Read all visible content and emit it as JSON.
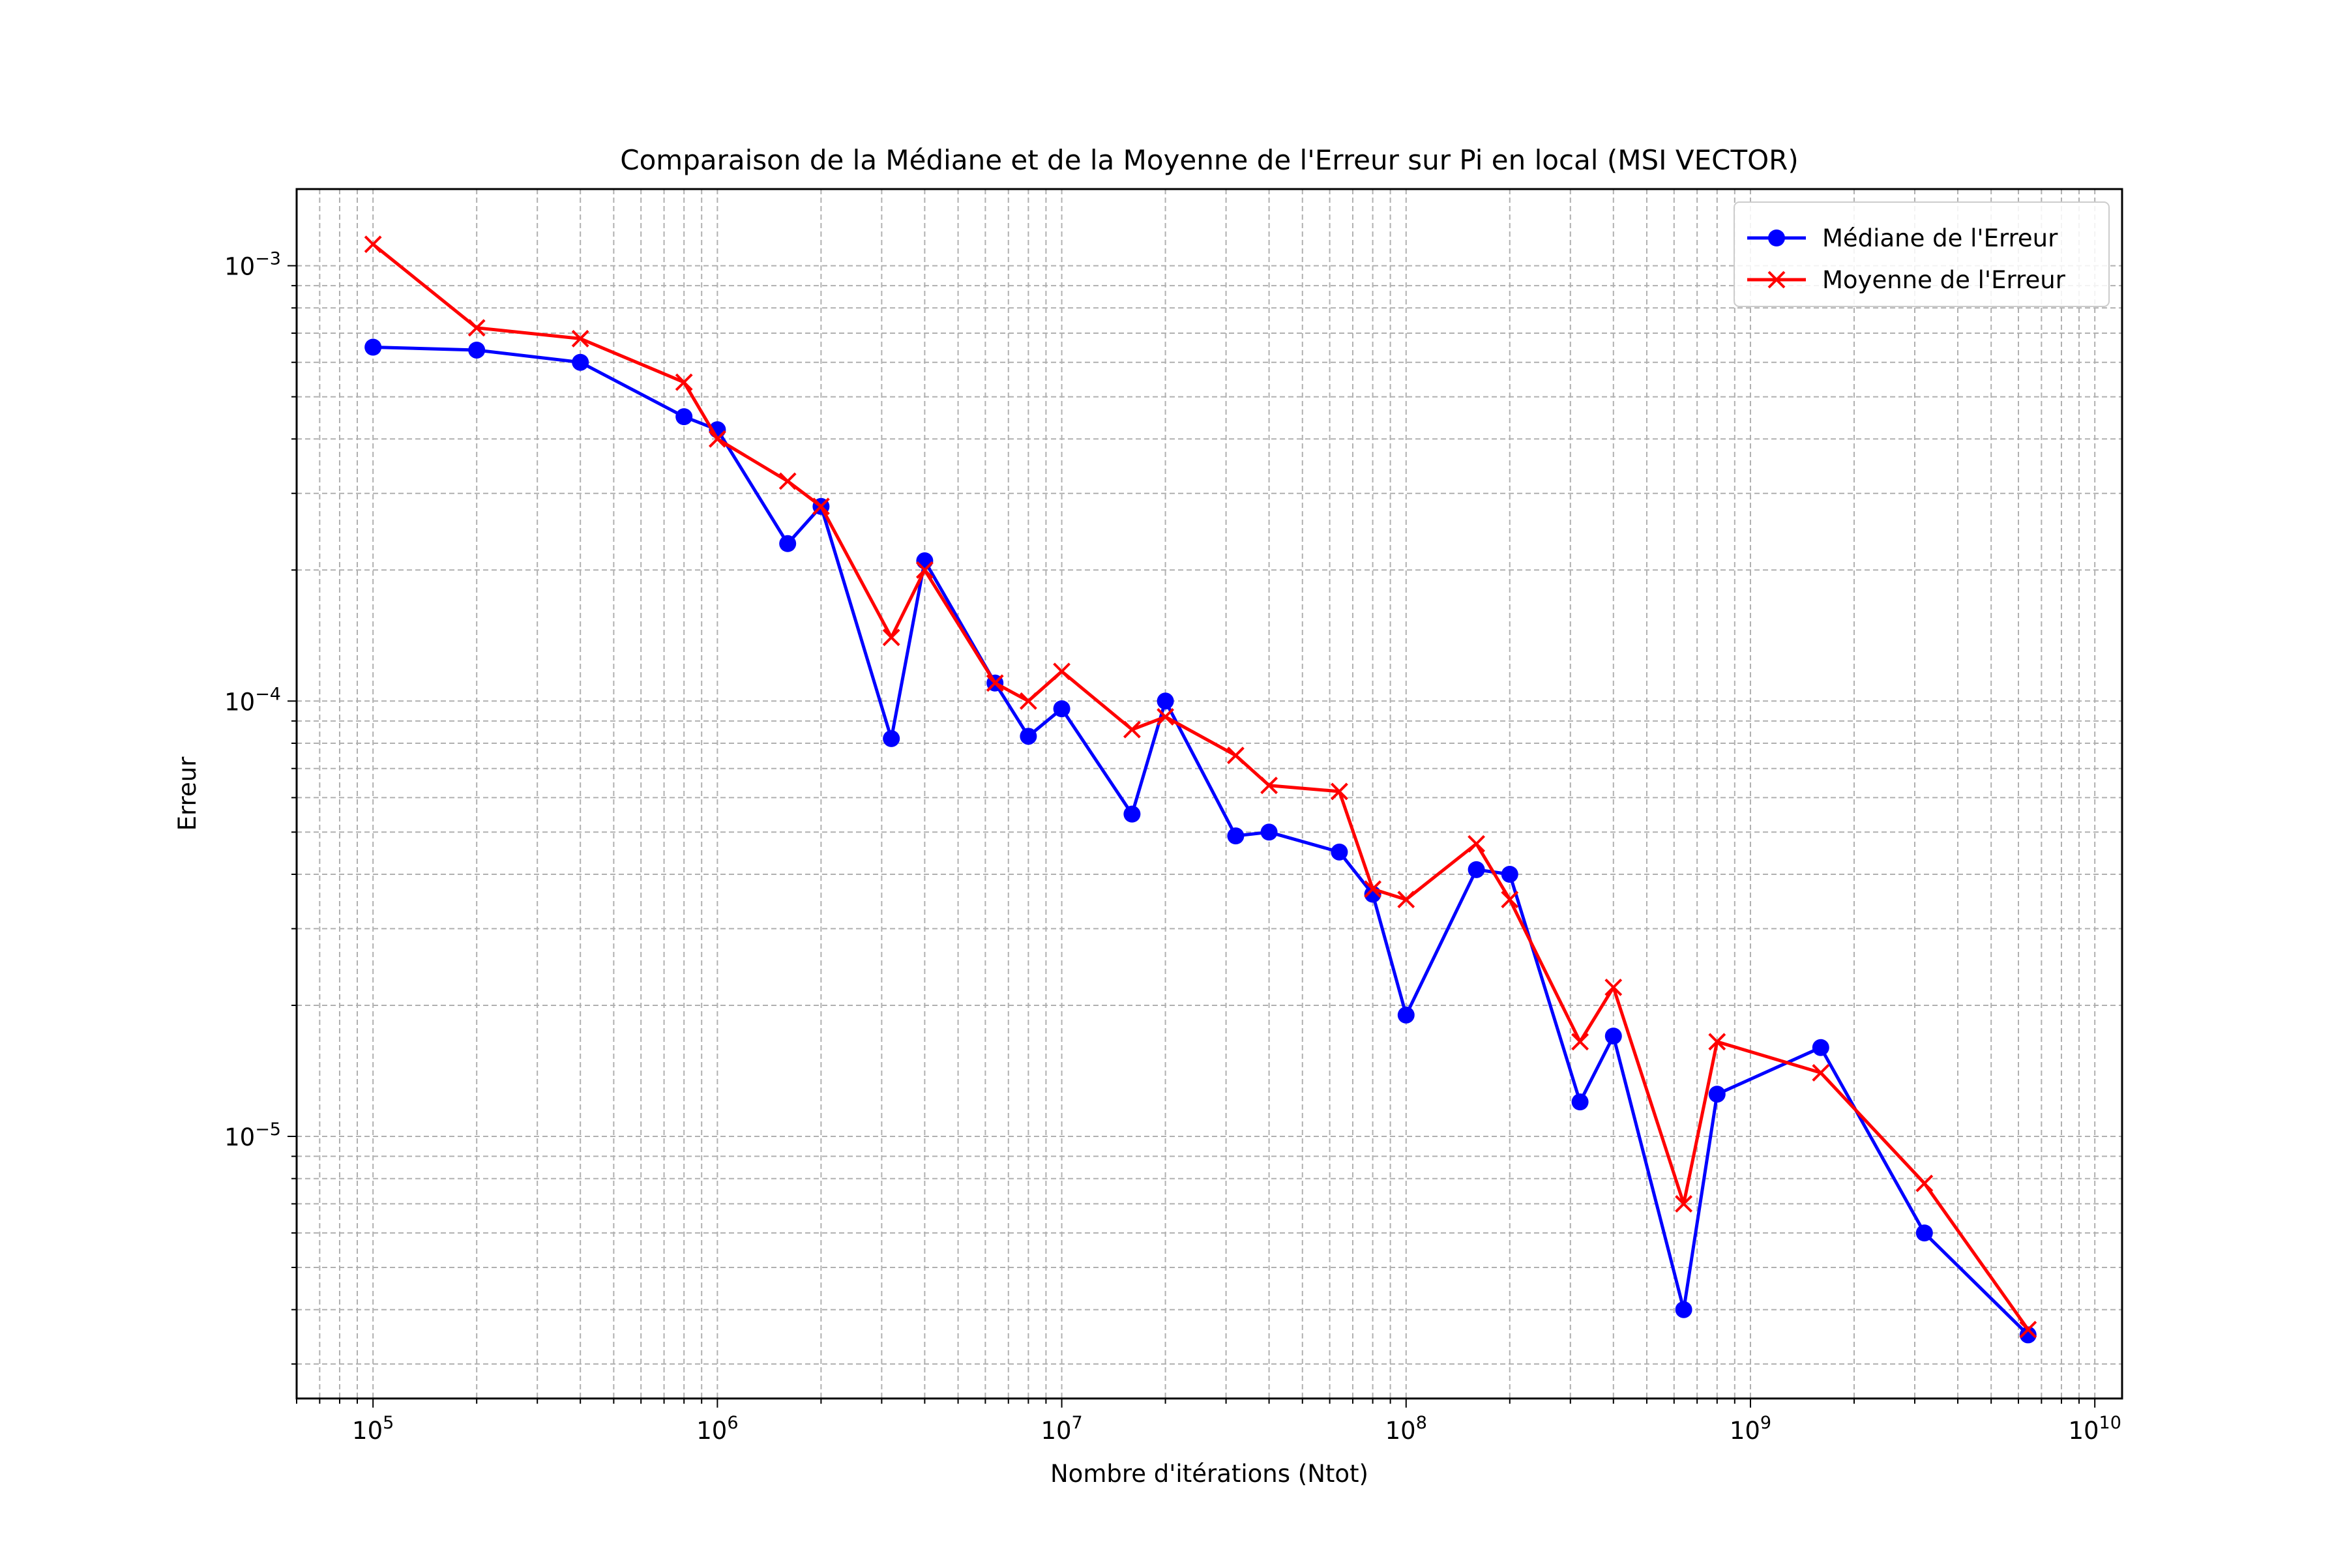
{
  "chart_data": {
    "type": "line",
    "title": "Comparaison de la Médiane et de la Moyenne de l'Erreur sur Pi en local (MSI VECTOR)",
    "xlabel": "Nombre d'itérations (Ntot)",
    "ylabel": "Erreur",
    "x_scale": "log",
    "y_scale": "log",
    "xlim": [
      60000,
      12000000000
    ],
    "ylim": [
      2.5e-06,
      0.0015
    ],
    "grid": true,
    "grid_minor": true,
    "legend_position": "top-right",
    "x_ticks": [
      {
        "value": 100000,
        "base": "10",
        "exp": "5"
      },
      {
        "value": 1000000,
        "base": "10",
        "exp": "6"
      },
      {
        "value": 10000000,
        "base": "10",
        "exp": "7"
      },
      {
        "value": 100000000,
        "base": "10",
        "exp": "8"
      },
      {
        "value": 1000000000,
        "base": "10",
        "exp": "9"
      },
      {
        "value": 10000000000,
        "base": "10",
        "exp": "10"
      }
    ],
    "y_ticks": [
      {
        "value": 1e-05,
        "base": "10",
        "exp": "−5"
      },
      {
        "value": 0.0001,
        "base": "10",
        "exp": "−4"
      },
      {
        "value": 0.001,
        "base": "10",
        "exp": "−3"
      }
    ],
    "x": [
      100000,
      200000,
      400000,
      800000,
      1000000,
      1600000,
      2000000,
      3200000,
      4000000,
      6400000,
      8000000,
      10000000,
      16000000,
      20000000,
      32000000,
      40000000,
      64000000,
      80000000,
      100000000,
      160000000,
      200000000,
      320000000,
      400000000,
      640000000,
      800000000,
      1600000000,
      3200000000,
      6400000000
    ],
    "series": [
      {
        "name": "Médiane de l'Erreur",
        "color": "#0000ff",
        "marker": "circle",
        "values": [
          0.00065,
          0.00064,
          0.0006,
          0.00045,
          0.00042,
          0.00023,
          0.00028,
          8.2e-05,
          0.00021,
          0.00011,
          8.3e-05,
          9.6e-05,
          5.5e-05,
          0.0001,
          4.9e-05,
          5e-05,
          4.5e-05,
          3.6e-05,
          1.9e-05,
          4.1e-05,
          4e-05,
          1.2e-05,
          1.7e-05,
          4e-06,
          1.25e-05,
          1.6e-05,
          6e-06,
          3.5e-06
        ]
      },
      {
        "name": "Moyenne de l'Erreur",
        "color": "#ff0000",
        "marker": "x",
        "values": [
          0.00112,
          0.00072,
          0.00068,
          0.00054,
          0.0004,
          0.00032,
          0.00028,
          0.00014,
          0.0002,
          0.00011,
          0.0001,
          0.000117,
          8.6e-05,
          9.2e-05,
          7.5e-05,
          6.4e-05,
          6.2e-05,
          3.7e-05,
          3.5e-05,
          4.7e-05,
          3.5e-05,
          1.65e-05,
          2.2e-05,
          7e-06,
          1.65e-05,
          1.4e-05,
          7.8e-06,
          3.6e-06
        ]
      }
    ]
  }
}
